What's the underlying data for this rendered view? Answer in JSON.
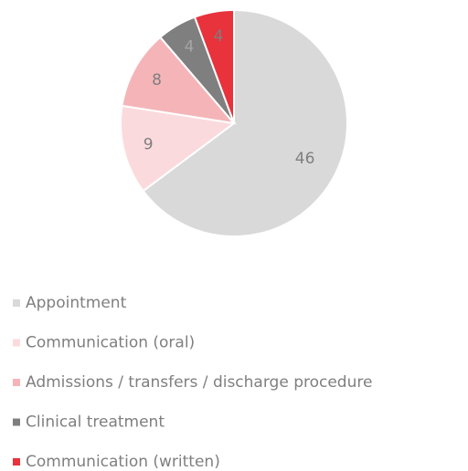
{
  "chart_data": {
    "type": "pie",
    "categories": [
      "Appointment",
      "Communication (oral)",
      "Admissions / transfers / discharge procedure",
      "Clinical treatment",
      "Communication (written)"
    ],
    "values": [
      46,
      9,
      8,
      4,
      4
    ],
    "colors": [
      "#d9d9d9",
      "#fbdadd",
      "#f5b5b8",
      "#7f7f7f",
      "#e8323c"
    ],
    "legend": "bottom"
  }
}
